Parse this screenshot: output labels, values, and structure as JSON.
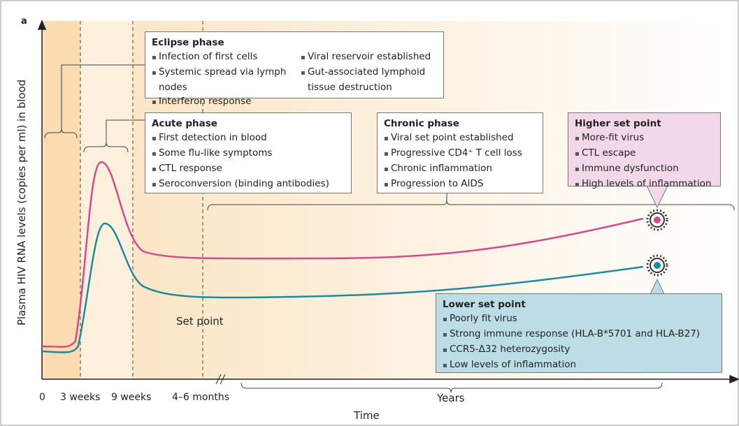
{
  "panel_label": "a",
  "y_axis_label": "Plasma HIV RNA levels (copies per ml) in blood",
  "x_axis_label": "Time",
  "x_ticks": [
    "0",
    "3 weeks",
    "9 weeks",
    "4–6 months"
  ],
  "years_label": "Years",
  "set_point_label": "Set point",
  "boxes": [
    {
      "title": "Eclipse phase",
      "items": [
        "Infection of first cells",
        "Systemic spread via lymph nodes",
        "Interferon response",
        "Viral reservoir established",
        "Gut-associated lymphoid tissue destruction"
      ]
    },
    {
      "title": "Acute phase",
      "items": [
        "First detection in blood",
        "Some flu-like symptoms",
        "CTL response",
        "Seroconversion (binding antibodies)"
      ]
    },
    {
      "title": "Chronic phase",
      "items": [
        "Viral set point established",
        "Progressive CD4⁺ T cell loss",
        "Chronic inflammation",
        "Progression to AIDS"
      ]
    },
    {
      "title": "Higher set point",
      "items": [
        "More-fit virus",
        "CTL escape",
        "Immune dysfunction",
        "High levels of inflammation"
      ]
    },
    {
      "title": "Lower set point",
      "items": [
        "Poorly fit virus",
        "Strong immune response (HLA-B*5701 and HLA-B27)",
        "CCR5-Δ32 heterozygosity",
        "Low levels of inflammation"
      ]
    }
  ]
}
